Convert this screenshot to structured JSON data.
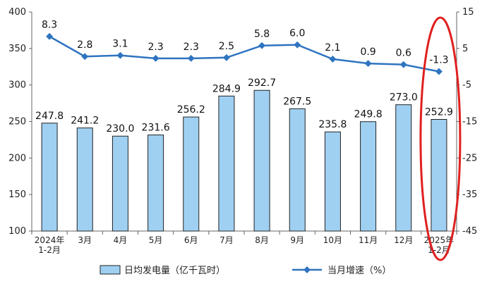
{
  "chart_data": {
    "type": "bar+line",
    "categories": [
      "2024年\n1-2月",
      "3月",
      "4月",
      "5月",
      "6月",
      "7月",
      "8月",
      "9月",
      "10月",
      "11月",
      "12月",
      "2025年\n1-2月"
    ],
    "series": [
      {
        "name": "日均发电量（亿千瓦时）",
        "type": "bar",
        "axis": "left",
        "values": [
          247.8,
          241.2,
          230.0,
          231.6,
          256.2,
          284.9,
          292.7,
          267.5,
          235.8,
          249.8,
          273.0,
          252.9
        ],
        "labels": [
          "247.8",
          "241.2",
          "230.0",
          "231.6",
          "256.2",
          "284.9",
          "292.7",
          "267.5",
          "235.8",
          "249.8",
          "273.0",
          "252.9"
        ],
        "color": "#9fd0f2",
        "border": "#222222"
      },
      {
        "name": "当月增速（%）",
        "type": "line",
        "axis": "right",
        "values": [
          8.3,
          2.8,
          3.1,
          2.3,
          2.3,
          2.5,
          5.8,
          6.0,
          2.1,
          0.9,
          0.6,
          -1.3
        ],
        "labels": [
          "8.3",
          "2.8",
          "3.1",
          "2.3",
          "2.3",
          "2.5",
          "5.8",
          "6.0",
          "2.1",
          "0.9",
          "0.6",
          "-1.3"
        ],
        "color": "#2e74c0"
      }
    ],
    "y_left": {
      "range": [
        100,
        400
      ],
      "ticks": [
        100,
        150,
        200,
        250,
        300,
        350,
        400
      ]
    },
    "y_right": {
      "range": [
        -45,
        15
      ],
      "ticks": [
        -45,
        -35,
        -25,
        -15,
        -5,
        5,
        15
      ]
    },
    "grid": false,
    "legend_position": "bottom",
    "highlight": {
      "category_index": 11,
      "shape": "ellipse",
      "color": "#e02020"
    }
  }
}
